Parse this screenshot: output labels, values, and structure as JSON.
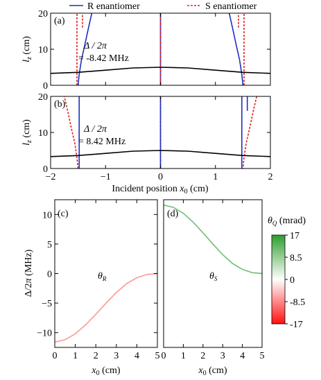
{
  "legend": {
    "r_label": "R enantiomer",
    "s_label": "S enantiomer",
    "r_color": "#1f2fbf",
    "s_color": "#e02020"
  },
  "chart_data": [
    {
      "panel": "(a)",
      "type": "line",
      "annotation": {
        "line1": "Δ / 2π",
        "line2": "= -8.42 MHz"
      },
      "xlabel": "",
      "ylabel": "lz (cm)",
      "xlim": [
        -2,
        2
      ],
      "ylim": [
        0,
        20
      ],
      "xticks": [
        -2,
        -1,
        0,
        1,
        2
      ],
      "yticks": [
        0,
        10,
        20
      ],
      "series": [
        {
          "name": "R enantiomer",
          "color": "#1f2fbf",
          "style": "solid",
          "segments": [
            {
              "x": [
                -1.5,
                -1.48,
                -1.44,
                -1.38,
                -1.31,
                -1.25
              ],
              "y": [
                0,
                3,
                7,
                11,
                16,
                20
              ]
            },
            {
              "x": [
                0.0,
                0.0
              ],
              "y": [
                0,
                20
              ]
            },
            {
              "x": [
                1.25,
                1.31,
                1.38,
                1.44,
                1.48,
                1.5
              ],
              "y": [
                20,
                16,
                11,
                7,
                3,
                0
              ]
            }
          ]
        },
        {
          "name": "S enantiomer",
          "color": "#e02020",
          "style": "dashed",
          "segments": [
            {
              "x": [
                -1.52,
                -1.52
              ],
              "y": [
                0,
                20
              ]
            },
            {
              "x": [
                -1.42,
                -1.42
              ],
              "y": [
                16,
                20
              ]
            },
            {
              "x": [
                0.0,
                0.0
              ],
              "y": [
                0,
                20
              ]
            },
            {
              "x": [
                1.42,
                1.42
              ],
              "y": [
                16,
                20
              ]
            },
            {
              "x": [
                1.52,
                1.52
              ],
              "y": [
                0,
                20
              ]
            }
          ]
        },
        {
          "name": "",
          "color": "#000000",
          "style": "solid",
          "segments": [
            {
              "x": [
                -2,
                -1.5,
                -1,
                -0.5,
                0,
                0.5,
                1,
                1.5,
                2
              ],
              "y": [
                3.3,
                3.6,
                4.2,
                4.8,
                5.0,
                4.8,
                4.2,
                3.6,
                3.3
              ]
            }
          ]
        }
      ]
    },
    {
      "panel": "(b)",
      "type": "line",
      "annotation": {
        "line1": "Δ / 2π",
        "line2": "= 8.42 MHz"
      },
      "xlabel": "Incident position x0 (cm)",
      "ylabel": "lz (cm)",
      "xlim": [
        -2,
        2
      ],
      "ylim": [
        0,
        20
      ],
      "xticks": [
        -2,
        -1,
        0,
        1,
        2
      ],
      "yticks": [
        0,
        10,
        20
      ],
      "series": [
        {
          "name": "S enantiomer",
          "color": "#e02020",
          "style": "dashed",
          "segments": [
            {
              "x": [
                -1.5,
                -1.52,
                -1.56,
                -1.62,
                -1.69,
                -1.75
              ],
              "y": [
                0,
                3,
                7,
                11,
                16,
                20
              ]
            },
            {
              "x": [
                0.0,
                0.0
              ],
              "y": [
                0,
                20
              ]
            },
            {
              "x": [
                1.75,
                1.69,
                1.62,
                1.56,
                1.52,
                1.5
              ],
              "y": [
                20,
                16,
                11,
                7,
                3,
                0
              ]
            }
          ]
        },
        {
          "name": "R enantiomer",
          "color": "#1f2fbf",
          "style": "solid",
          "segments": [
            {
              "x": [
                -1.48,
                -1.48
              ],
              "y": [
                0,
                20
              ]
            },
            {
              "x": [
                0.0,
                0.0
              ],
              "y": [
                0,
                20
              ]
            },
            {
              "x": [
                1.48,
                1.48
              ],
              "y": [
                0,
                20
              ]
            },
            {
              "x": [
                1.58,
                1.58
              ],
              "y": [
                16,
                20
              ]
            }
          ]
        },
        {
          "name": "",
          "color": "#000000",
          "style": "solid",
          "segments": [
            {
              "x": [
                -2,
                -1.5,
                -1,
                -0.5,
                0,
                0.5,
                1,
                1.5,
                2
              ],
              "y": [
                3.3,
                3.6,
                4.2,
                4.8,
                5.0,
                4.8,
                4.2,
                3.6,
                3.3
              ]
            }
          ]
        }
      ]
    },
    {
      "panel": "(c)",
      "type": "heatmap",
      "label": "θR",
      "xlabel": "x0 (cm)",
      "ylabel": "Δ/2π (MHz)",
      "xlim": [
        0,
        5
      ],
      "ylim": [
        -12.5,
        12.5
      ],
      "xticks": [
        0,
        1,
        2,
        3,
        4,
        5
      ],
      "yticks": [
        -10,
        -5,
        0,
        5,
        10
      ],
      "color": "#ff8080",
      "curve": {
        "x": [
          0,
          0.5,
          1,
          1.5,
          2,
          2.5,
          3,
          3.5,
          4,
          4.5,
          5
        ],
        "y": [
          -11.6,
          -11.2,
          -10.2,
          -8.7,
          -6.9,
          -5.0,
          -3.2,
          -1.7,
          -0.7,
          -0.15,
          0
        ]
      }
    },
    {
      "panel": "(d)",
      "type": "heatmap",
      "label": "θS",
      "xlabel": "x0 (cm)",
      "ylabel": "",
      "xlim": [
        0,
        5
      ],
      "ylim": [
        -12.5,
        12.5
      ],
      "xticks": [
        0,
        1,
        2,
        3,
        4,
        5
      ],
      "yticks": [],
      "color": "#55b055",
      "curve": {
        "x": [
          0,
          0.5,
          1,
          1.5,
          2,
          2.5,
          3,
          3.5,
          4,
          4.5,
          5
        ],
        "y": [
          11.6,
          11.2,
          10.2,
          8.7,
          6.9,
          5.0,
          3.2,
          1.7,
          0.7,
          0.15,
          0
        ]
      }
    }
  ],
  "colorbar": {
    "title": "θQ (mrad)",
    "ticks": [
      "17",
      "8.5",
      "0",
      "-8.5",
      "-17"
    ],
    "colors": [
      "#2e9e2e",
      "#ffffff",
      "#ff1010"
    ]
  }
}
